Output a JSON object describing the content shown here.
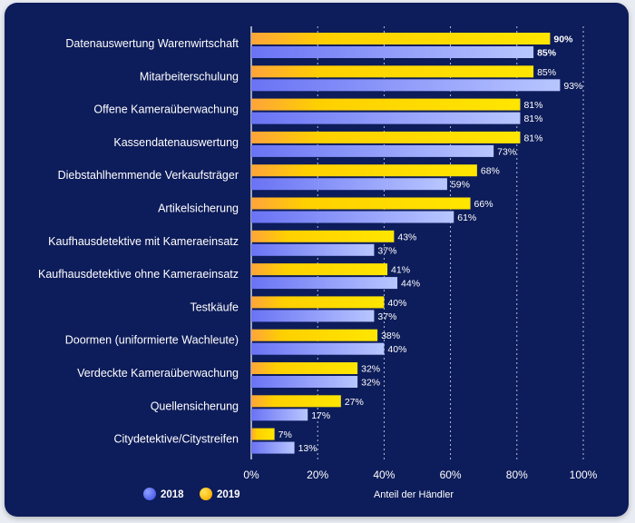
{
  "chart_data": {
    "type": "bar",
    "orientation": "horizontal",
    "xlabel": "Anteil der Händler",
    "xlim": [
      0,
      100
    ],
    "ticks": [
      "0%",
      "20%",
      "40%",
      "60%",
      "80%",
      "100%"
    ],
    "categories": [
      "Datenauswertung Warenwirtschaft",
      "Mitarbeiterschulung",
      "Offene Kameraüberwachung",
      "Kassendatenauswertung",
      "Diebstahlhemmende Verkaufsträger",
      "Artikelsicherung",
      "Kaufhausdetektive mit Kameraeinsatz",
      "Kaufhausdetektive ohne Kameraeinsatz",
      "Testkäufe",
      "Doormen (uniformierte Wachleute)",
      "Verdeckte Kameraüberwachung",
      "Quellensicherung",
      "Citydetektive/Citystreifen"
    ],
    "series": [
      {
        "name": "2019",
        "color": "#ffd200",
        "values": [
          90,
          85,
          81,
          81,
          68,
          66,
          43,
          41,
          40,
          38,
          32,
          27,
          7
        ],
        "labels": [
          "90%",
          "85%",
          "81%",
          "81%",
          "68%",
          "66%",
          "43%",
          "41%",
          "40%",
          "38%",
          "32%",
          "27%",
          "7%"
        ]
      },
      {
        "name": "2018",
        "color": "#6f7cf0",
        "values": [
          85,
          93,
          81,
          73,
          59,
          61,
          37,
          44,
          37,
          40,
          32,
          17,
          13
        ],
        "labels": [
          "85%",
          "93%",
          "81%",
          "73%",
          "59%",
          "61%",
          "37%",
          "44%",
          "37%",
          "40%",
          "32%",
          "17%",
          "13%"
        ]
      }
    ],
    "legend": [
      {
        "label": "2018",
        "color": "#5c6ff0"
      },
      {
        "label": "2019",
        "color": "#ffc400"
      }
    ],
    "highlight": {
      "first_row_label_colors": {
        "2019": "#ff9a2e",
        "2018": "#9aa8ff"
      }
    }
  }
}
